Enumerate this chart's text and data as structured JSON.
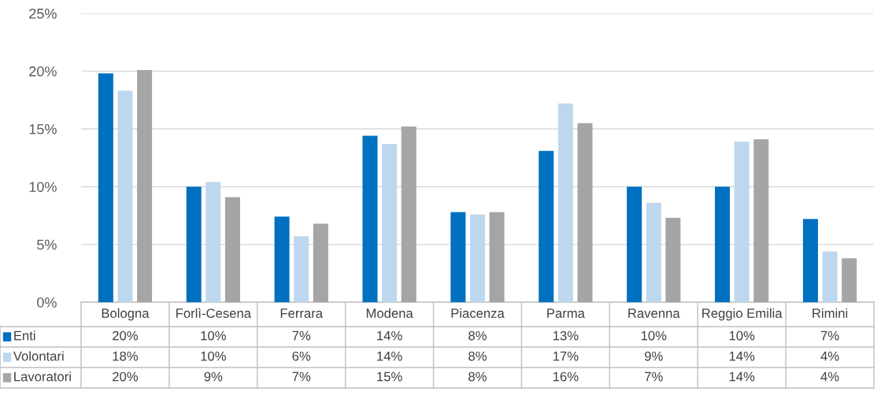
{
  "chart_data": {
    "type": "bar",
    "categories": [
      "Bologna",
      "Forlì-Cesena",
      "Ferrara",
      "Modena",
      "Piacenza",
      "Parma",
      "Ravenna",
      "Reggio Emilia",
      "Rimini"
    ],
    "series": [
      {
        "name": "Enti",
        "color": "#0070c0",
        "values": [
          19.8,
          10.0,
          7.4,
          14.4,
          7.8,
          13.1,
          10.0,
          10.0,
          7.2
        ],
        "value_labels": [
          "20%",
          "10%",
          "7%",
          "14%",
          "8%",
          "13%",
          "10%",
          "10%",
          "7%"
        ]
      },
      {
        "name": "Volontari",
        "color": "#bdd7ee",
        "values": [
          18.3,
          10.4,
          5.7,
          13.7,
          7.6,
          17.2,
          8.6,
          13.9,
          4.4
        ],
        "value_labels": [
          "18%",
          "10%",
          "6%",
          "14%",
          "8%",
          "17%",
          "9%",
          "14%",
          "4%"
        ]
      },
      {
        "name": "Lavoratori",
        "color": "#a5a5a5",
        "values": [
          20.1,
          9.1,
          6.8,
          15.2,
          7.8,
          15.5,
          7.3,
          14.1,
          3.8
        ],
        "value_labels": [
          "20%",
          "9%",
          "7%",
          "15%",
          "8%",
          "16%",
          "7%",
          "14%",
          "4%"
        ]
      }
    ],
    "ylim": [
      0,
      25
    ],
    "yticks": [
      {
        "value": 0,
        "label": "0%"
      },
      {
        "value": 5,
        "label": "5%"
      },
      {
        "value": 10,
        "label": "10%"
      },
      {
        "value": 15,
        "label": "15%"
      },
      {
        "value": 20,
        "label": "20%"
      },
      {
        "value": 25,
        "label": "25%"
      }
    ],
    "grid": "y",
    "legend": "bottom"
  }
}
